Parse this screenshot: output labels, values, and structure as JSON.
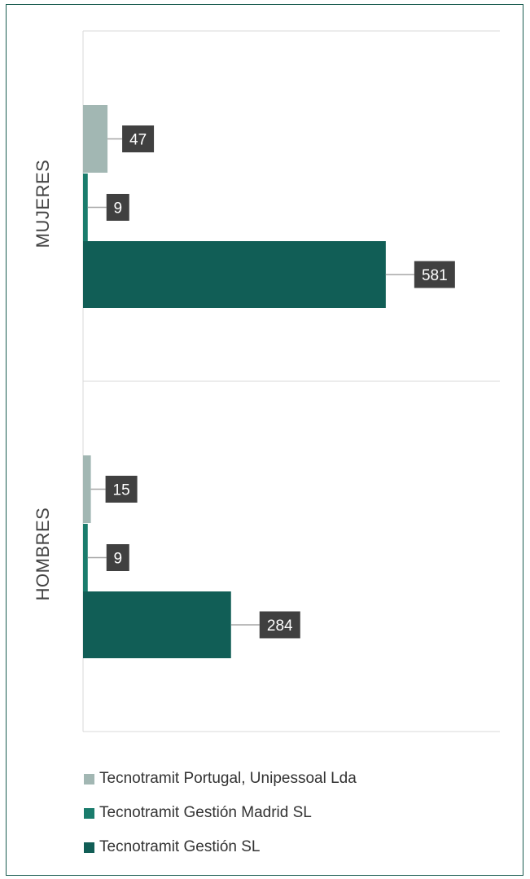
{
  "chart_data": {
    "type": "bar",
    "orientation": "horizontal",
    "categories": [
      "MUJERES",
      "HOMBRES"
    ],
    "series": [
      {
        "name": "Tecnotramit Portugal, Unipessoal Lda",
        "color": "#a2b7b3",
        "values": [
          47,
          15
        ]
      },
      {
        "name": "Tecnotramit Gestión Madrid SL",
        "color": "#1a7c6c",
        "values": [
          9,
          9
        ]
      },
      {
        "name": "Tecnotramit Gestión SL",
        "color": "#115e56",
        "values": [
          581,
          284
        ]
      }
    ],
    "data_labels": true,
    "xlim": [
      0,
      800
    ],
    "legend_position": "bottom",
    "grid": false
  },
  "colors": {
    "frame": "#1a5c50",
    "label_box": "#404040",
    "leader_line": "#a6a6a6",
    "axis_line": "#d9d9d9"
  }
}
